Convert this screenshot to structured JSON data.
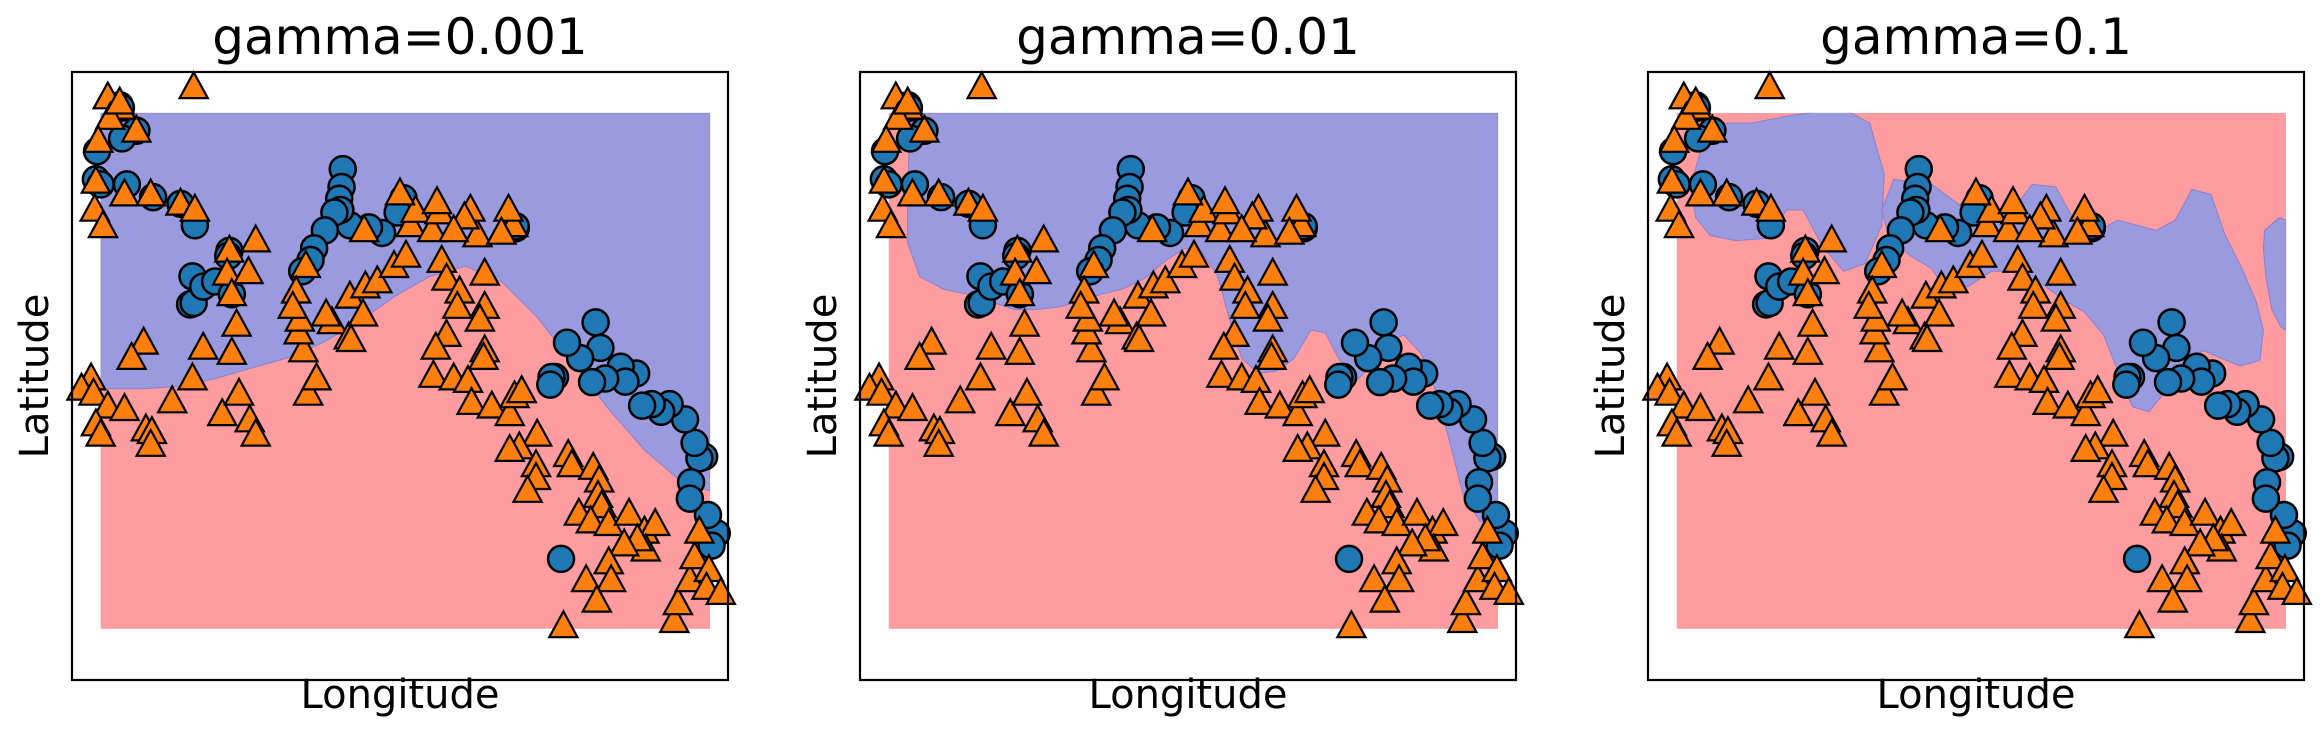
{
  "chart_data": [
    {
      "type": "scatter",
      "title": "gamma=0.001",
      "xlabel": "Longitude",
      "ylabel": "Latitude",
      "xticks": [],
      "yticks": [],
      "grid": false,
      "legend": "none",
      "colors": {
        "region_0": "#ff9c9f",
        "region_1": "#9a9ade",
        "circle": "#1f77b4",
        "triangle": "#ff7f0e"
      },
      "circles": [
        [
          2.0,
          7.67
        ],
        [
          8.53,
          8.17
        ],
        [
          8.31,
          7.93
        ],
        [
          8.16,
          8.53
        ],
        [
          8.0,
          9.67
        ],
        [
          7.8,
          9.64
        ],
        [
          7.6,
          9.94
        ],
        [
          7.45,
          9.17
        ],
        [
          7.4,
          8.85
        ],
        [
          7.2,
          10.4
        ],
        [
          6.55,
          10.7
        ],
        [
          6.2,
          10.55
        ],
        [
          5.8,
          10.7
        ],
        [
          5.4,
          10.67
        ],
        [
          5.15,
          11.3
        ],
        [
          4.5,
          11.43
        ],
        [
          4.7,
          11.14
        ],
        [
          3.85,
          11.2
        ],
        [
          3.3,
          11.13
        ],
        [
          3.65,
          11.8
        ],
        [
          3.45,
          12.3
        ],
        [
          2.8,
          11.6
        ],
        [
          2.25,
          11.9
        ],
        [
          1.75,
          11.23
        ],
        [
          1.6,
          11.23
        ],
        [
          1.55,
          11.08
        ],
        [
          0.1,
          14.14
        ],
        [
          0.1,
          14.18
        ],
        [
          -4.6,
          14.73
        ],
        [
          -4.85,
          14.45
        ],
        [
          -5.5,
          14.05
        ],
        [
          -6.05,
          14.16
        ],
        [
          -6.85,
          14.2
        ],
        [
          -7.15,
          15.3
        ],
        [
          -7.2,
          14.95
        ],
        [
          -7.3,
          14.72
        ],
        [
          -7.25,
          14.5
        ],
        [
          -7.5,
          14.45
        ],
        [
          -7.9,
          14.1
        ],
        [
          -8.35,
          13.75
        ],
        [
          -8.5,
          13.52
        ],
        [
          -8.85,
          13.3
        ],
        [
          -11.9,
          13.7
        ],
        [
          -13.55,
          12.65
        ],
        [
          -13.4,
          12.68
        ],
        [
          -13.45,
          13.2
        ],
        [
          -13.0,
          13.0
        ],
        [
          -12.5,
          13.1
        ],
        [
          -11.95,
          13.6
        ],
        [
          -11.8,
          12.85
        ],
        [
          -16.5,
          16.55
        ],
        [
          -16.45,
          16.5
        ],
        [
          -15.8,
          16.05
        ],
        [
          -16.4,
          15.9
        ],
        [
          -17.45,
          15.65
        ],
        [
          -17.5,
          15.1
        ],
        [
          -17.3,
          15.0
        ],
        [
          -16.2,
          15.0
        ],
        [
          -15.1,
          14.75
        ],
        [
          -13.95,
          14.62
        ],
        [
          -13.35,
          14.2
        ]
      ],
      "triangles": [
        [
          -15.8,
          16.05
        ],
        [
          -16.45,
          16.5
        ],
        [
          -17.0,
          16.7
        ],
        [
          -16.9,
          16.3
        ],
        [
          -13.4,
          16.9
        ],
        [
          -16.5,
          16.6
        ],
        [
          -17.4,
          15.85
        ],
        [
          -17.5,
          15.05
        ],
        [
          -17.55,
          14.5
        ],
        [
          -17.2,
          14.18
        ],
        [
          -16.3,
          14.8
        ],
        [
          -15.2,
          14.8
        ],
        [
          -13.95,
          14.62
        ],
        [
          -13.35,
          14.5
        ],
        [
          -11.9,
          13.7
        ],
        [
          -12.0,
          13.25
        ],
        [
          -10.8,
          13.9
        ],
        [
          -11.8,
          12.85
        ],
        [
          -11.6,
          12.25
        ],
        [
          -11.1,
          13.28
        ],
        [
          -11.8,
          11.7
        ],
        [
          -13.0,
          11.8
        ],
        [
          -13.45,
          11.2
        ],
        [
          -15.5,
          11.9
        ],
        [
          -16.0,
          11.6
        ],
        [
          -17.7,
          11.2
        ],
        [
          -18.1,
          11.0
        ],
        [
          -17.6,
          10.9
        ],
        [
          -17.0,
          10.65
        ],
        [
          -17.5,
          10.3
        ],
        [
          -17.3,
          10.1
        ],
        [
          -16.3,
          10.6
        ],
        [
          -15.4,
          10.2
        ],
        [
          -15.15,
          10.15
        ],
        [
          -15.2,
          9.9
        ],
        [
          -14.3,
          10.75
        ],
        [
          -12.2,
          10.5
        ],
        [
          -11.5,
          10.9
        ],
        [
          -11.05,
          10.38
        ],
        [
          -10.8,
          10.1
        ],
        [
          -8.6,
          10.9
        ],
        [
          -8.25,
          11.2
        ],
        [
          -8.8,
          11.75
        ],
        [
          -9.0,
          12.1
        ],
        [
          -8.95,
          12.35
        ],
        [
          -7.6,
          12.3
        ],
        [
          -7.85,
          12.45
        ],
        [
          -6.9,
          12.0
        ],
        [
          -6.85,
          12.8
        ],
        [
          -6.3,
          12.45
        ],
        [
          -6.8,
          11.95
        ],
        [
          -6.2,
          13.0
        ],
        [
          -5.7,
          13.1
        ],
        [
          -5.0,
          13.4
        ],
        [
          -4.5,
          13.6
        ],
        [
          -4.3,
          14.2
        ],
        [
          -4.1,
          14.48
        ],
        [
          -4.75,
          14.82
        ],
        [
          -6.25,
          14.1
        ],
        [
          -8.7,
          13.4
        ],
        [
          -9.1,
          12.9
        ],
        [
          -9.25,
          12.6
        ],
        [
          -3.4,
          14.1
        ],
        [
          -3.1,
          14.45
        ],
        [
          -3.2,
          14.65
        ],
        [
          -1.5,
          14.0
        ],
        [
          -1.2,
          13.25
        ],
        [
          -1.2,
          12.6
        ],
        [
          -1.4,
          12.35
        ],
        [
          -2.8,
          12.05
        ],
        [
          -3.25,
          11.8
        ],
        [
          -3.35,
          11.25
        ],
        [
          -2.5,
          11.2
        ],
        [
          0.0,
          14.2
        ],
        [
          -0.2,
          14.5
        ],
        [
          -0.5,
          14.05
        ],
        [
          -1.8,
          14.5
        ],
        [
          -2.05,
          14.35
        ],
        [
          -2.5,
          14.1
        ],
        [
          -3.0,
          13.5
        ],
        [
          -2.8,
          13.15
        ],
        [
          -2.25,
          12.9
        ],
        [
          -2.35,
          12.6
        ],
        [
          -1.2,
          11.75
        ],
        [
          -1.25,
          11.6
        ],
        [
          -1.9,
          11.15
        ],
        [
          -1.75,
          10.72
        ],
        [
          -0.9,
          10.65
        ],
        [
          -0.15,
          10.5
        ],
        [
          0.05,
          10.85
        ],
        [
          0.35,
          10.95
        ],
        [
          1.0,
          10.1
        ],
        [
          0.25,
          9.85
        ],
        [
          -0.15,
          9.8
        ],
        [
          0.95,
          9.5
        ],
        [
          0.95,
          9.25
        ],
        [
          0.6,
          9.0
        ],
        [
          2.3,
          9.7
        ],
        [
          2.45,
          9.5
        ],
        [
          3.35,
          9.45
        ],
        [
          3.6,
          9.2
        ],
        [
          3.55,
          8.9
        ],
        [
          3.7,
          8.7
        ],
        [
          2.75,
          8.55
        ],
        [
          3.25,
          8.4
        ],
        [
          4.0,
          8.35
        ],
        [
          4.85,
          8.55
        ],
        [
          5.5,
          8.2
        ],
        [
          5.95,
          8.35
        ],
        [
          5.55,
          7.85
        ],
        [
          5.2,
          8.05
        ],
        [
          4.65,
          7.95
        ],
        [
          4.0,
          7.6
        ],
        [
          4.1,
          7.25
        ],
        [
          3.05,
          7.25
        ],
        [
          3.5,
          6.85
        ],
        [
          2.1,
          6.35
        ],
        [
          6.75,
          6.45
        ],
        [
          6.9,
          6.8
        ],
        [
          7.4,
          7.25
        ],
        [
          7.6,
          7.7
        ],
        [
          7.8,
          8.2
        ],
        [
          8.2,
          7.45
        ],
        [
          8.1,
          7.1
        ],
        [
          8.7,
          7.0
        ]
      ]
    },
    {
      "type": "scatter",
      "title": "gamma=0.01",
      "xlabel": "Longitude",
      "ylabel": "Latitude",
      "xticks": [],
      "yticks": [],
      "grid": false,
      "legend": "none",
      "colors": {
        "region_0": "#ff9c9f",
        "region_1": "#9a9ade",
        "circle": "#1f77b4",
        "triangle": "#ff7f0e"
      },
      "same_points_as_panel": 1
    },
    {
      "type": "scatter",
      "title": "gamma=0.1",
      "xlabel": "Longitude",
      "ylabel": "Latitude",
      "xticks": [],
      "yticks": [],
      "grid": false,
      "legend": "none",
      "colors": {
        "region_0": "#ff9c9f",
        "region_1": "#9a9ade",
        "circle": "#1f77b4",
        "triangle": "#ff7f0e"
      },
      "same_points_as_panel": 1
    }
  ]
}
